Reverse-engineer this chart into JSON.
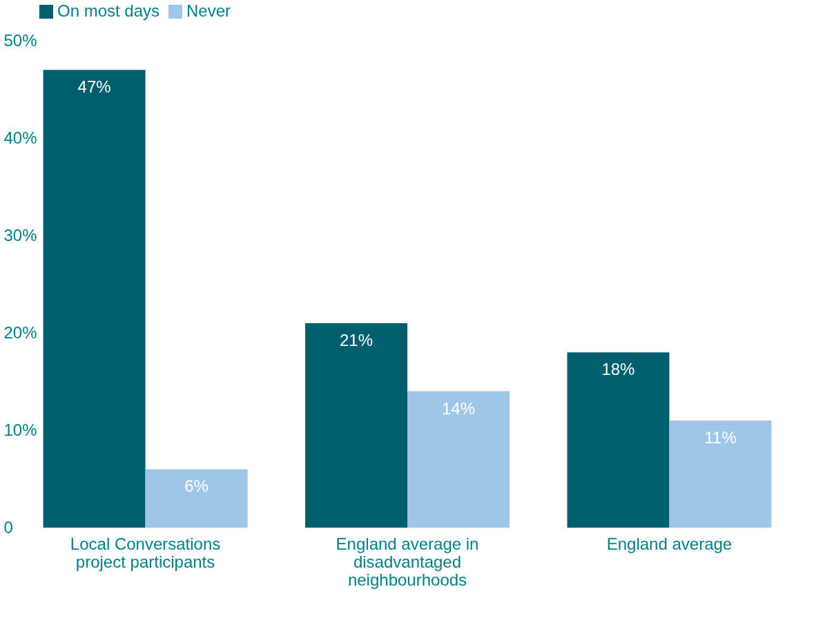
{
  "chart_data": {
    "type": "bar",
    "categories": [
      "Local Conversations project participants",
      "England average in disadvantaged neighbourhoods",
      "England average"
    ],
    "series": [
      {
        "name": "On most days",
        "color": "#005f6e",
        "values": [
          47,
          21,
          18
        ],
        "value_labels": [
          "47%",
          "21%",
          "18%"
        ]
      },
      {
        "name": "Never",
        "color": "#9dc6e8",
        "values": [
          6,
          14,
          11
        ],
        "value_labels": [
          "6%",
          "14%",
          "11%"
        ]
      }
    ],
    "ylim": [
      0,
      50
    ],
    "yticks": [
      {
        "value": 0,
        "label": "0"
      },
      {
        "value": 10,
        "label": "10%"
      },
      {
        "value": 20,
        "label": "20%"
      },
      {
        "value": 30,
        "label": "30%"
      },
      {
        "value": 40,
        "label": "40%"
      },
      {
        "value": 50,
        "label": "50%"
      }
    ],
    "grid": false,
    "legend": "top left"
  }
}
